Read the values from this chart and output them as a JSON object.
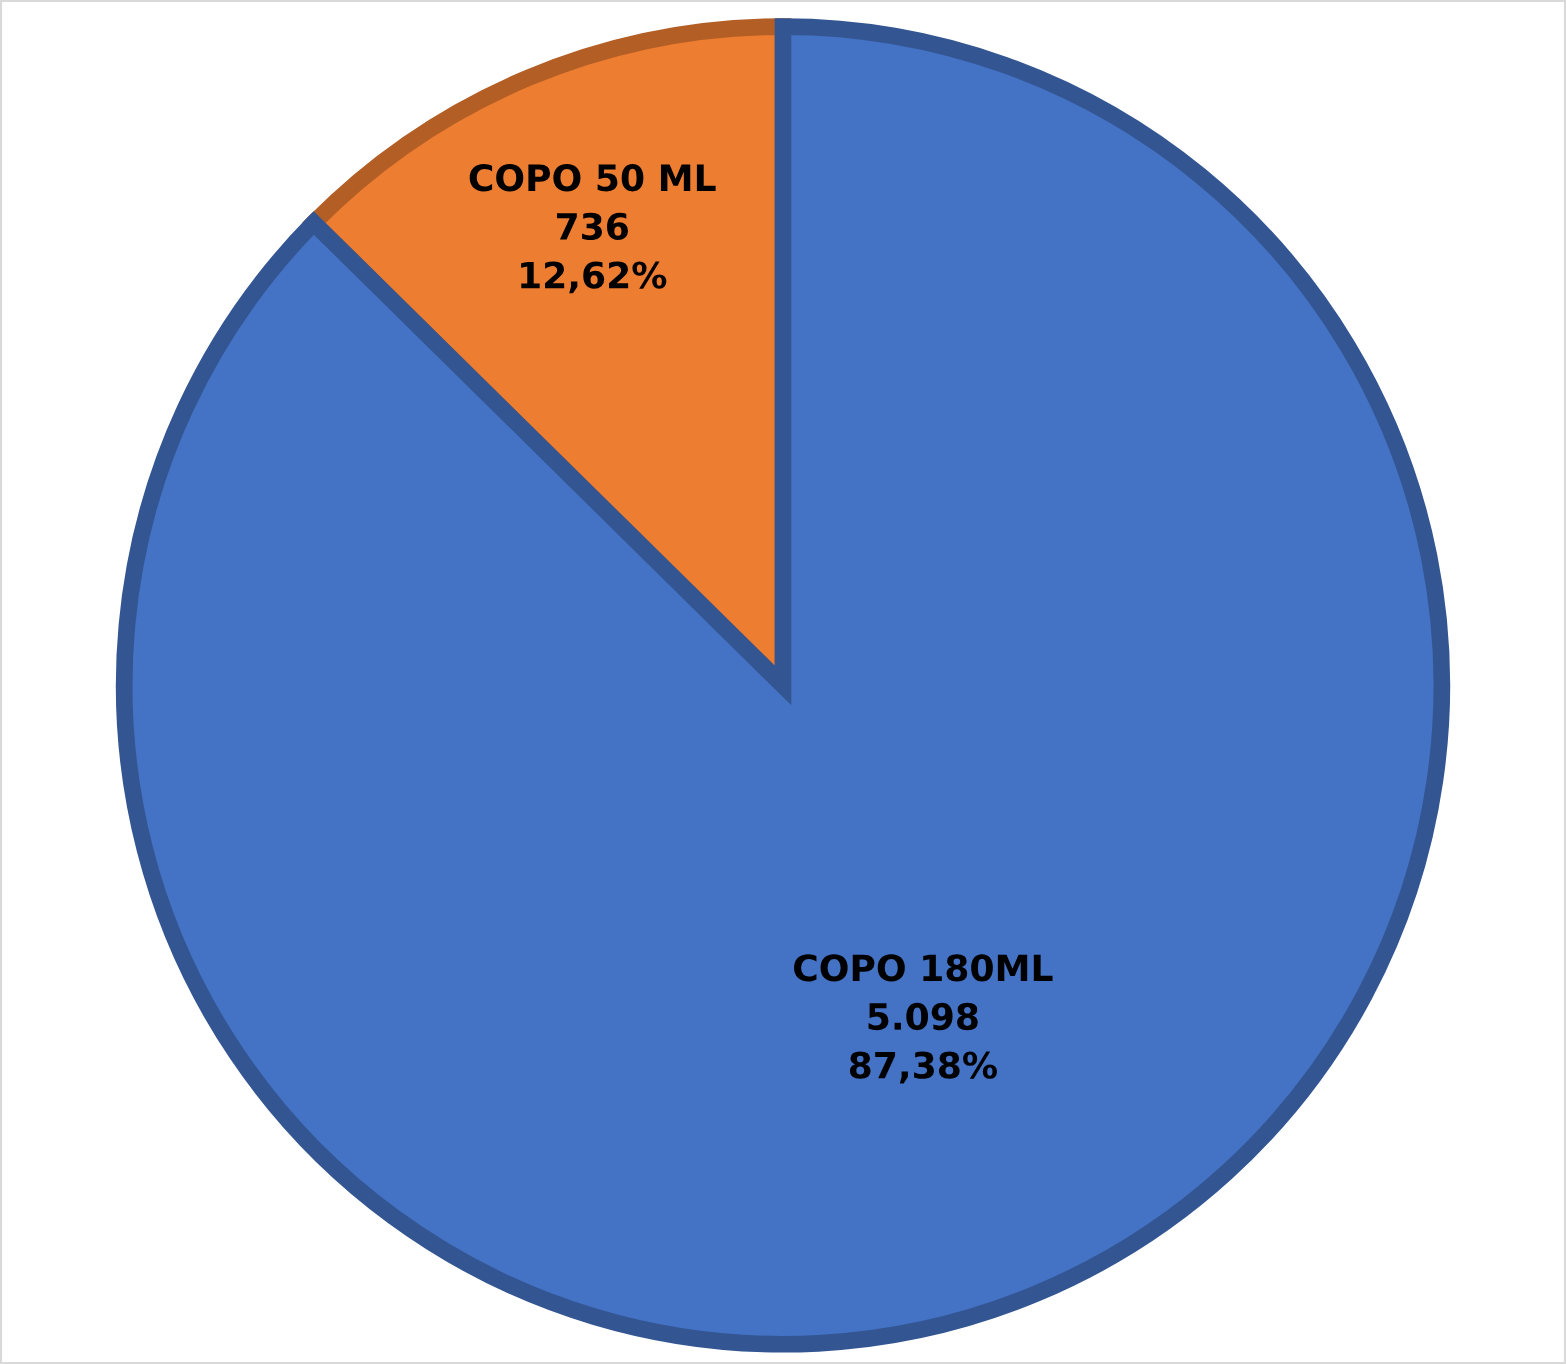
{
  "chart_data": {
    "type": "pie",
    "categories": [
      "COPO 50 ML",
      "COPO 180ML"
    ],
    "values": [
      736,
      5098
    ],
    "value_labels": [
      "736\n12,62%",
      "5.098\n87,38%"
    ],
    "colors": [
      "#ed7d31",
      "#4472c4"
    ],
    "legend": false
  }
}
